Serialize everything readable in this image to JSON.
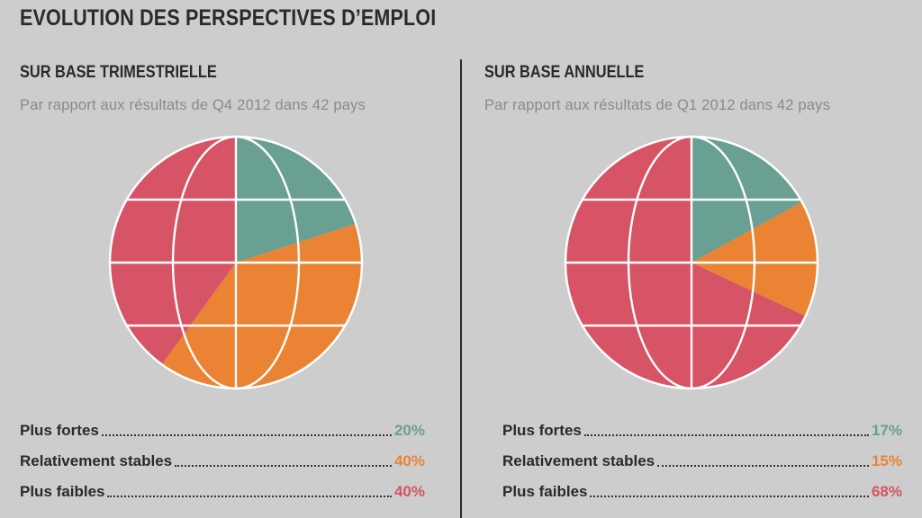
{
  "title": "EVOLUTION DES PERSPECTIVES D’EMPLOI",
  "colors": {
    "green": "#6a9f93",
    "orange": "#ea8333",
    "red": "#d65465"
  },
  "chart_data": [
    {
      "type": "pie",
      "title": "SUR BASE TRIMESTRIELLE",
      "subtitle": "Par rapport aux résultats de Q4 2012 dans 42 pays",
      "categories": [
        "Plus fortes",
        "Relativement stables",
        "Plus faibles"
      ],
      "values": [
        20,
        40,
        40
      ],
      "value_labels": [
        "20%",
        "40%",
        "40%"
      ],
      "colors": [
        "#6a9f93",
        "#ea8333",
        "#d65465"
      ]
    },
    {
      "type": "pie",
      "title": "SUR BASE ANNUELLE",
      "subtitle": "Par rapport aux résultats de Q1 2012 dans 42 pays",
      "categories": [
        "Plus fortes",
        "Relativement stables",
        "Plus faibles"
      ],
      "values": [
        17,
        15,
        68
      ],
      "value_labels": [
        "17%",
        "15%",
        "68%"
      ],
      "colors": [
        "#6a9f93",
        "#ea8333",
        "#d65465"
      ]
    }
  ]
}
